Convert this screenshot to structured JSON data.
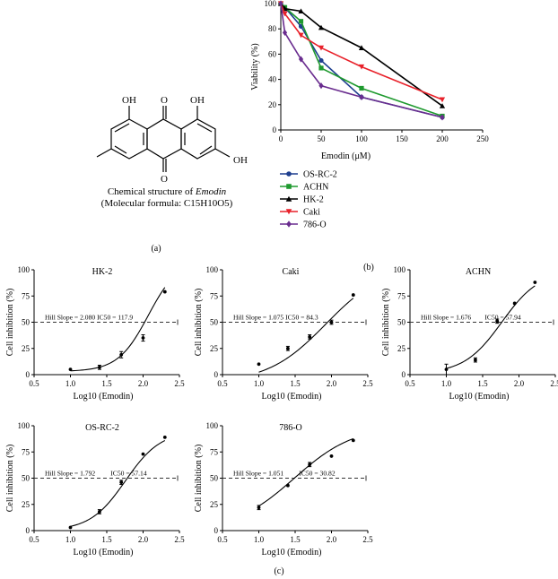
{
  "panel_labels": {
    "a": "(a)",
    "b": "(b)",
    "c": "(c)"
  },
  "structure": {
    "caption_line1_prefix": "Chemical structure of ",
    "caption_line1_italic": "Emodin",
    "caption_line2": "(Molecular formula: C15H10O5)",
    "atoms": {
      "oh_left": "OH",
      "oh_right": "OH",
      "oh_bottom": "OH",
      "o_top": "O",
      "o_bottom": "O"
    }
  },
  "chart_data": [
    {
      "id": "viability",
      "type": "line",
      "title": "",
      "xlabel": "Emodin (μM)",
      "ylabel": "Viability (%)",
      "xlim": [
        0,
        250
      ],
      "ylim": [
        0,
        100
      ],
      "xticks": [
        0,
        50,
        100,
        150,
        200,
        250
      ],
      "yticks": [
        0,
        20,
        40,
        60,
        80,
        100
      ],
      "x": [
        0,
        5,
        25,
        50,
        100,
        200
      ],
      "series": [
        {
          "name": "OS-RC-2",
          "color": "#1f3f8f",
          "marker": "circle",
          "values": [
            100,
            97,
            82,
            55,
            26,
            10
          ]
        },
        {
          "name": "ACHN",
          "color": "#1f9a2f",
          "marker": "square",
          "values": [
            100,
            97,
            86,
            49,
            33,
            11
          ]
        },
        {
          "name": "HK-2",
          "color": "#000000",
          "marker": "triangle",
          "values": [
            100,
            96,
            94,
            81,
            65,
            19
          ]
        },
        {
          "name": "Caki",
          "color": "#e8212a",
          "marker": "tridown",
          "values": [
            100,
            92,
            75,
            65,
            50,
            24
          ]
        },
        {
          "name": "786-O",
          "color": "#6a2d8f",
          "marker": "diamond",
          "values": [
            100,
            77,
            56,
            35,
            26,
            10
          ]
        }
      ],
      "legend_position": "below"
    },
    {
      "id": "hk2",
      "type": "scatter",
      "title": "HK-2",
      "xlabel": "Log10 (Emodin)",
      "ylabel": "Cell inhibition (%)",
      "xlim": [
        0.5,
        2.5
      ],
      "ylim": [
        0,
        100
      ],
      "xticks": [
        0.5,
        1.0,
        1.5,
        2.0,
        2.5
      ],
      "yticks": [
        0,
        25,
        50,
        75,
        100
      ],
      "x": [
        1.0,
        1.4,
        1.7,
        2.0,
        2.3
      ],
      "values": [
        5,
        7,
        19,
        35,
        79
      ],
      "errors": [
        0,
        2,
        3,
        3,
        0
      ],
      "fit": {
        "bottom": 3,
        "top": 110,
        "logIC50": 2.0715,
        "hill": 2.08
      },
      "reference_y": 50,
      "annotation": "Hill Slope = 2.080 IC50 = 117.9"
    },
    {
      "id": "caki",
      "type": "scatter",
      "title": "Caki",
      "xlabel": "Log10 (Emodin)",
      "ylabel": "Cell inhibition (%)",
      "xlim": [
        0.5,
        2.5
      ],
      "ylim": [
        0,
        100
      ],
      "xticks": [
        0.5,
        1.0,
        1.5,
        2.0,
        2.5
      ],
      "yticks": [
        0,
        25,
        50,
        75,
        100
      ],
      "x": [
        1.0,
        1.4,
        1.7,
        2.0,
        2.3
      ],
      "values": [
        10,
        25,
        36,
        50,
        76
      ],
      "errors": [
        0,
        2,
        2,
        2,
        0
      ],
      "fit": {
        "bottom": -8,
        "top": 105,
        "logIC50": 1.9259,
        "hill": 1.075
      },
      "reference_y": 50,
      "annotation": "Hill Slope = 1.075 IC50 = 84.3"
    },
    {
      "id": "achn",
      "type": "scatter",
      "title": "ACHN",
      "xlabel": "Log10 (Emodin)",
      "ylabel": "Cell inhibition (%)",
      "xlim": [
        0.5,
        2.5
      ],
      "ylim": [
        0,
        100
      ],
      "xticks": [
        0.5,
        1.0,
        1.5,
        2.0,
        2.5
      ],
      "yticks": [
        0,
        25,
        50,
        75,
        100
      ],
      "x": [
        1.0,
        1.4,
        1.7,
        1.94,
        2.22
      ],
      "values": [
        5,
        14,
        51,
        68,
        88
      ],
      "errors": [
        5,
        2,
        2,
        0,
        0
      ],
      "fit": {
        "bottom": 1,
        "top": 99,
        "logIC50": 1.763,
        "hill": 1.676
      },
      "reference_y": 50,
      "annotation": "Hill Slope = 1.676        IC50 = 57.94"
    },
    {
      "id": "osrc2",
      "type": "scatter",
      "title": "OS-RC-2",
      "xlabel": "Log10 (Emodin)",
      "ylabel": "Cell inhibition (%)",
      "xlim": [
        0.5,
        2.5
      ],
      "ylim": [
        0,
        100
      ],
      "xticks": [
        0.5,
        1.0,
        1.5,
        2.0,
        2.5
      ],
      "yticks": [
        0,
        25,
        50,
        75,
        100
      ],
      "x": [
        1.0,
        1.4,
        1.7,
        2.0,
        2.3
      ],
      "values": [
        3,
        18,
        46,
        73,
        89
      ],
      "errors": [
        0,
        2,
        2,
        0,
        0
      ],
      "fit": {
        "bottom": 0,
        "top": 95,
        "logIC50": 1.757,
        "hill": 1.792
      },
      "reference_y": 50,
      "annotation": "Hill Slope = 1.792         IC50 = 57.14"
    },
    {
      "id": "786o",
      "type": "scatter",
      "title": "786-O",
      "xlabel": "Log10 (Emodin)",
      "ylabel": "Cell inhibition (%)",
      "xlim": [
        0.5,
        2.5
      ],
      "ylim": [
        0,
        100
      ],
      "xticks": [
        0.5,
        1.0,
        1.5,
        2.0,
        2.5
      ],
      "yticks": [
        0,
        25,
        50,
        75,
        100
      ],
      "x": [
        1.0,
        1.4,
        1.7,
        2.0,
        2.3
      ],
      "values": [
        22,
        43,
        63,
        71,
        86
      ],
      "errors": [
        2,
        0,
        2,
        0,
        0
      ],
      "fit": {
        "bottom": 0,
        "top": 100,
        "logIC50": 1.489,
        "hill": 1.051
      },
      "reference_y": 50,
      "annotation": "Hill Slope = 1.051         IC50 = 30.82"
    }
  ]
}
